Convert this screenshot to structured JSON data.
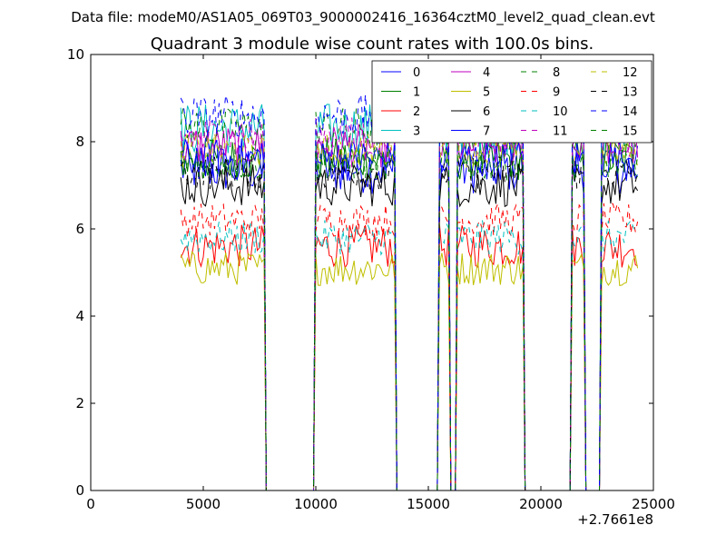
{
  "header": {
    "data_file": "Data file: modeM0/AS1A05_069T03_9000002416_16364cztM0_level2_quad_clean.evt"
  },
  "chart_data": {
    "type": "line",
    "title": "Quadrant 3 module wise count rates with 100.0s bins.",
    "xlabel": "",
    "ylabel": "",
    "xlim": [
      0,
      25000
    ],
    "ylim": [
      0,
      10
    ],
    "x_ticks": [
      0,
      5000,
      10000,
      15000,
      20000,
      25000
    ],
    "x_tick_labels": [
      "0",
      "5000",
      "10000",
      "15000",
      "20000",
      "25000"
    ],
    "y_ticks": [
      0,
      2,
      4,
      6,
      8,
      10
    ],
    "y_tick_labels": [
      "0",
      "2",
      "4",
      "6",
      "8",
      "10"
    ],
    "x_offset_label": "+2.7661e8",
    "grid": false,
    "legend": {
      "placement": "top-right",
      "columns": 4
    },
    "segments": [
      {
        "start": 4000,
        "end": 7700
      },
      {
        "start": 10000,
        "end": 13500
      },
      {
        "start": 15500,
        "end": 15900
      },
      {
        "start": 16300,
        "end": 19200
      },
      {
        "start": 21400,
        "end": 21900
      },
      {
        "start": 22700,
        "end": 24300
      }
    ],
    "series": [
      {
        "name": "0",
        "color": "#0000ff",
        "style": "solid",
        "level": 7.4,
        "spread": 0.6
      },
      {
        "name": "1",
        "color": "#008000",
        "style": "solid",
        "level": 7.6,
        "spread": 0.5
      },
      {
        "name": "2",
        "color": "#ff0000",
        "style": "solid",
        "level": 5.6,
        "spread": 0.5
      },
      {
        "name": "3",
        "color": "#00bfbf",
        "style": "solid",
        "level": 8.3,
        "spread": 0.6
      },
      {
        "name": "4",
        "color": "#bf00bf",
        "style": "solid",
        "level": 7.9,
        "spread": 0.5
      },
      {
        "name": "5",
        "color": "#bfbf00",
        "style": "solid",
        "level": 5.1,
        "spread": 0.4
      },
      {
        "name": "6",
        "color": "#000000",
        "style": "solid",
        "level": 7.0,
        "spread": 0.5
      },
      {
        "name": "7",
        "color": "#0000ff",
        "style": "solid",
        "level": 7.6,
        "spread": 0.5
      },
      {
        "name": "8",
        "color": "#008000",
        "style": "dashed",
        "level": 8.3,
        "spread": 0.5
      },
      {
        "name": "9",
        "color": "#ff0000",
        "style": "dashed",
        "level": 6.2,
        "spread": 0.4
      },
      {
        "name": "10",
        "color": "#00bfbf",
        "style": "dashed",
        "level": 5.8,
        "spread": 0.4
      },
      {
        "name": "11",
        "color": "#bf00bf",
        "style": "dashed",
        "level": 8.1,
        "spread": 0.5
      },
      {
        "name": "12",
        "color": "#bfbf00",
        "style": "dashed",
        "level": 7.8,
        "spread": 0.4
      },
      {
        "name": "13",
        "color": "#000000",
        "style": "dashed",
        "level": 7.3,
        "spread": 0.4
      },
      {
        "name": "14",
        "color": "#0000ff",
        "style": "dashed",
        "level": 8.6,
        "spread": 0.5
      },
      {
        "name": "15",
        "color": "#008000",
        "style": "dashed",
        "level": 7.5,
        "spread": 0.4
      }
    ]
  }
}
